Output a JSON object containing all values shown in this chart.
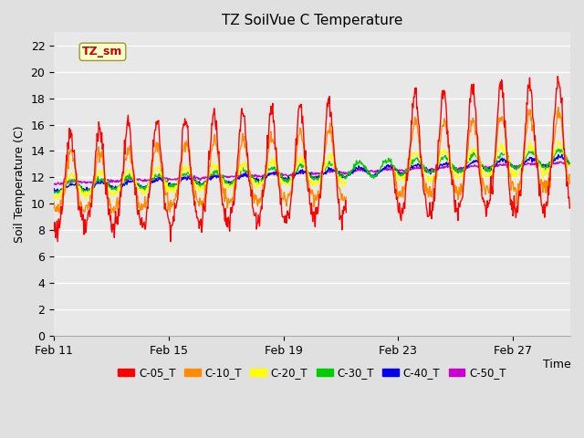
{
  "title": "TZ SoilVue C Temperature",
  "xlabel": "Time",
  "ylabel": "Soil Temperature (C)",
  "ylim": [
    0,
    23
  ],
  "yticks": [
    0,
    2,
    4,
    6,
    8,
    10,
    12,
    14,
    16,
    18,
    20,
    22
  ],
  "xtick_days": [
    11,
    15,
    19,
    23,
    27
  ],
  "annotation_text": "TZ_sm",
  "background_color": "#e0e0e0",
  "plot_bg_color": "#e8e8e8",
  "grid_color": "#ffffff",
  "series_colors": {
    "C-05_T": "#ff0000",
    "C-10_T": "#ff8c00",
    "C-20_T": "#ffff00",
    "C-30_T": "#00cc00",
    "C-40_T": "#0000ee",
    "C-50_T": "#cc00cc"
  },
  "legend_labels": [
    "C-05_T",
    "C-10_T",
    "C-20_T",
    "C-30_T",
    "C-40_T",
    "C-50_T"
  ]
}
